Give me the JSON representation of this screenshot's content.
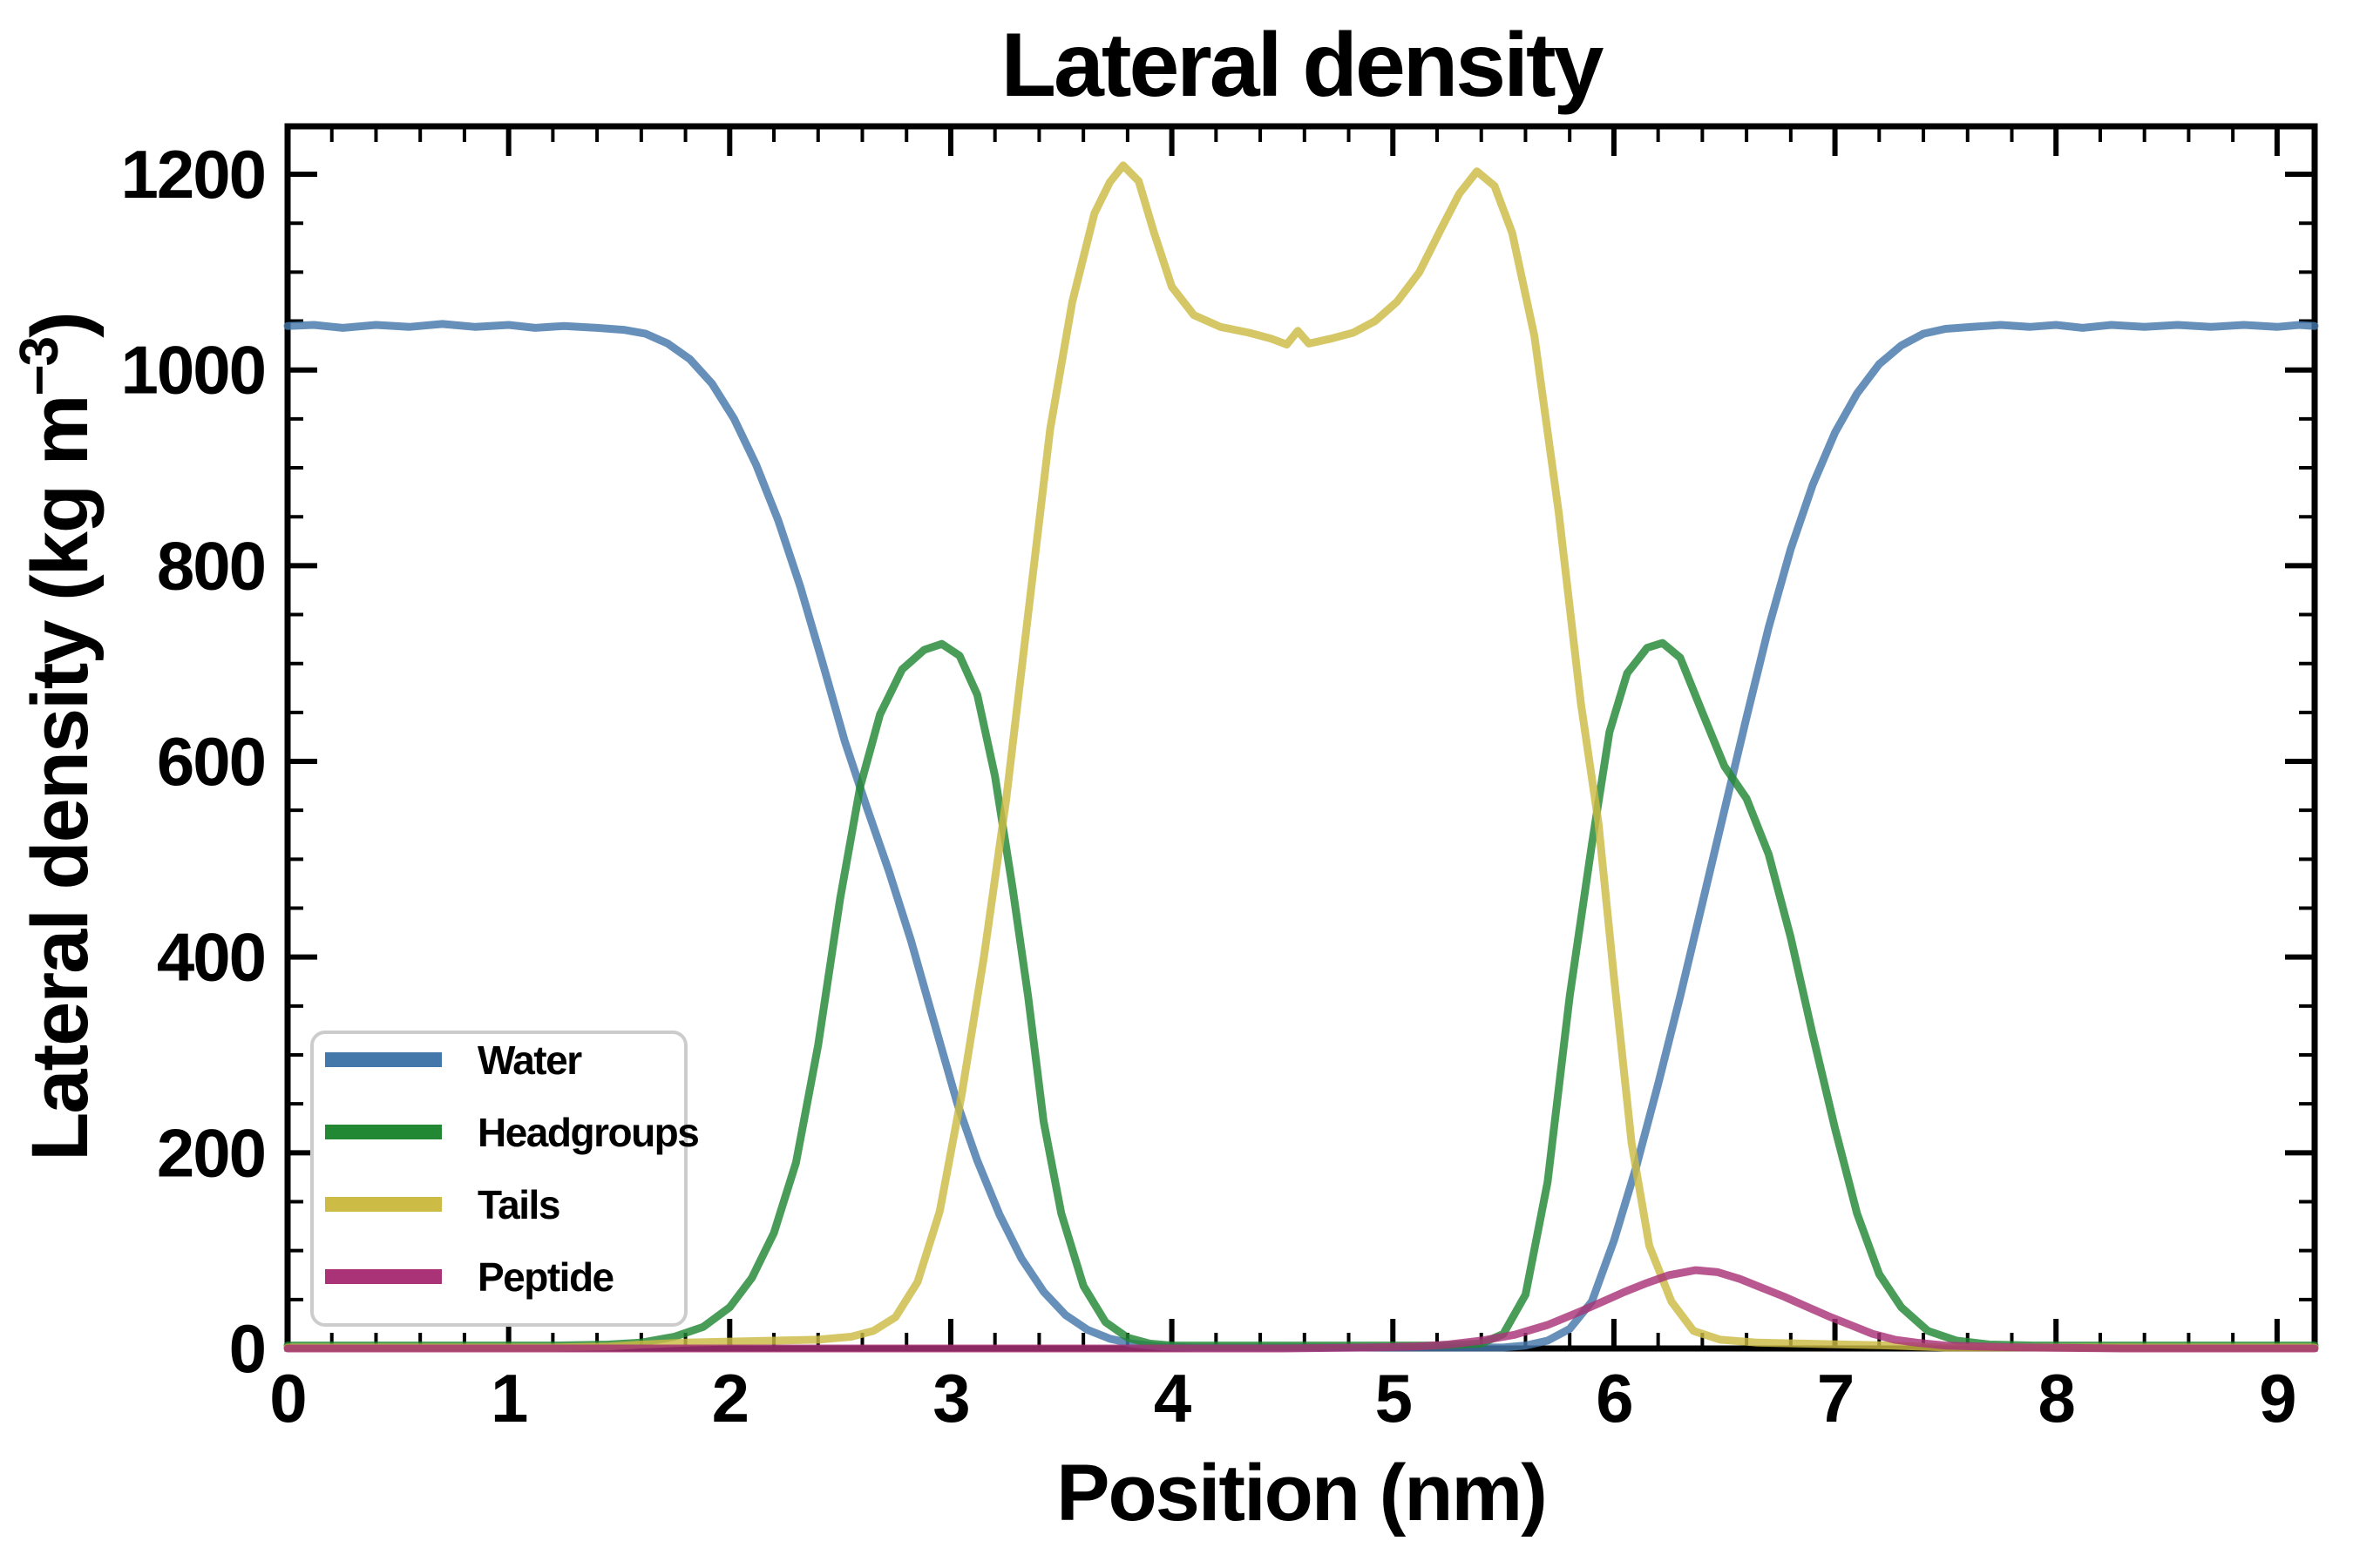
{
  "chart_data": {
    "type": "line",
    "title": "Lateral density",
    "xlabel": "Position (nm)",
    "ylabel": "Lateral density (kg m−3)",
    "ylabel_parts": {
      "main": "Lateral density (kg m",
      "sup": "−3",
      "end": ")"
    },
    "xlim": [
      0,
      9.17
    ],
    "ylim": [
      0,
      1249
    ],
    "x_major_ticks": [
      0,
      1,
      2,
      3,
      4,
      5,
      6,
      7,
      8,
      9
    ],
    "x_minor_step": 0.2,
    "y_major_ticks": [
      0,
      200,
      400,
      600,
      800,
      1000,
      1200
    ],
    "y_minor_step": 50,
    "grid": false,
    "legend_position": "lower-left",
    "line_width": 9,
    "line_opacity": 0.82,
    "series": [
      {
        "name": "Water",
        "color": "#4477AA",
        "points": [
          [
            0,
            1045
          ],
          [
            0.12,
            1046
          ],
          [
            0.25,
            1043
          ],
          [
            0.4,
            1046
          ],
          [
            0.55,
            1044
          ],
          [
            0.7,
            1047
          ],
          [
            0.85,
            1044
          ],
          [
            1.0,
            1046
          ],
          [
            1.12,
            1043
          ],
          [
            1.25,
            1045
          ],
          [
            1.4,
            1043
          ],
          [
            1.52,
            1041
          ],
          [
            1.62,
            1037
          ],
          [
            1.72,
            1027
          ],
          [
            1.82,
            1011
          ],
          [
            1.92,
            986
          ],
          [
            2.02,
            950
          ],
          [
            2.12,
            903
          ],
          [
            2.22,
            846
          ],
          [
            2.32,
            778
          ],
          [
            2.42,
            701
          ],
          [
            2.52,
            621
          ],
          [
            2.62,
            553
          ],
          [
            2.72,
            488
          ],
          [
            2.82,
            417
          ],
          [
            2.92,
            337
          ],
          [
            3.03,
            250
          ],
          [
            3.12,
            192
          ],
          [
            3.22,
            137
          ],
          [
            3.32,
            92
          ],
          [
            3.42,
            58
          ],
          [
            3.52,
            34
          ],
          [
            3.62,
            19
          ],
          [
            3.72,
            10
          ],
          [
            3.82,
            5
          ],
          [
            3.95,
            2
          ],
          [
            4.1,
            1
          ],
          [
            4.4,
            1
          ],
          [
            4.8,
            1
          ],
          [
            5.2,
            1
          ],
          [
            5.5,
            1
          ],
          [
            5.6,
            3
          ],
          [
            5.7,
            8
          ],
          [
            5.8,
            20
          ],
          [
            5.9,
            48
          ],
          [
            6.0,
            110
          ],
          [
            6.1,
            185
          ],
          [
            6.2,
            270
          ],
          [
            6.3,
            360
          ],
          [
            6.4,
            455
          ],
          [
            6.5,
            550
          ],
          [
            6.6,
            645
          ],
          [
            6.7,
            737
          ],
          [
            6.8,
            817
          ],
          [
            6.9,
            883
          ],
          [
            7.0,
            936
          ],
          [
            7.1,
            976
          ],
          [
            7.2,
            1006
          ],
          [
            7.3,
            1025
          ],
          [
            7.4,
            1037
          ],
          [
            7.5,
            1042
          ],
          [
            7.62,
            1044
          ],
          [
            7.75,
            1046
          ],
          [
            7.88,
            1044
          ],
          [
            8.0,
            1046
          ],
          [
            8.12,
            1043
          ],
          [
            8.25,
            1046
          ],
          [
            8.4,
            1044
          ],
          [
            8.55,
            1046
          ],
          [
            8.7,
            1044
          ],
          [
            8.85,
            1046
          ],
          [
            9.0,
            1044
          ],
          [
            9.1,
            1046
          ],
          [
            9.17,
            1045
          ]
        ]
      },
      {
        "name": "Headgroups",
        "color": "#228833",
        "points": [
          [
            0,
            3
          ],
          [
            0.3,
            3
          ],
          [
            0.6,
            3
          ],
          [
            0.9,
            3
          ],
          [
            1.2,
            3
          ],
          [
            1.45,
            4
          ],
          [
            1.6,
            6
          ],
          [
            1.75,
            12
          ],
          [
            1.88,
            22
          ],
          [
            2.0,
            42
          ],
          [
            2.1,
            72
          ],
          [
            2.2,
            118
          ],
          [
            2.3,
            190
          ],
          [
            2.4,
            310
          ],
          [
            2.5,
            460
          ],
          [
            2.59,
            574
          ],
          [
            2.68,
            648
          ],
          [
            2.78,
            694
          ],
          [
            2.88,
            714
          ],
          [
            2.96,
            720
          ],
          [
            3.04,
            708
          ],
          [
            3.12,
            668
          ],
          [
            3.2,
            585
          ],
          [
            3.28,
            470
          ],
          [
            3.35,
            360
          ],
          [
            3.42,
            232
          ],
          [
            3.5,
            138
          ],
          [
            3.6,
            64
          ],
          [
            3.7,
            27
          ],
          [
            3.8,
            11
          ],
          [
            3.9,
            5
          ],
          [
            4.0,
            3
          ],
          [
            4.4,
            3
          ],
          [
            4.8,
            3
          ],
          [
            5.2,
            3
          ],
          [
            5.4,
            5
          ],
          [
            5.5,
            15
          ],
          [
            5.6,
            55
          ],
          [
            5.7,
            170
          ],
          [
            5.8,
            360
          ],
          [
            5.9,
            515
          ],
          [
            5.98,
            630
          ],
          [
            6.06,
            690
          ],
          [
            6.15,
            716
          ],
          [
            6.22,
            721
          ],
          [
            6.3,
            706
          ],
          [
            6.4,
            650
          ],
          [
            6.5,
            595
          ],
          [
            6.6,
            562
          ],
          [
            6.7,
            505
          ],
          [
            6.8,
            420
          ],
          [
            6.9,
            320
          ],
          [
            7.0,
            225
          ],
          [
            7.1,
            138
          ],
          [
            7.2,
            76
          ],
          [
            7.3,
            42
          ],
          [
            7.42,
            18
          ],
          [
            7.55,
            8
          ],
          [
            7.7,
            4
          ],
          [
            7.9,
            3
          ],
          [
            8.3,
            3
          ],
          [
            8.7,
            3
          ],
          [
            9.17,
            3
          ]
        ]
      },
      {
        "name": "Tails",
        "color": "#CCBB44",
        "points": [
          [
            0,
            1
          ],
          [
            0.4,
            1
          ],
          [
            0.8,
            1
          ],
          [
            1.2,
            1
          ],
          [
            1.45,
            2
          ],
          [
            1.6,
            4
          ],
          [
            1.8,
            6
          ],
          [
            2.0,
            7
          ],
          [
            2.2,
            8
          ],
          [
            2.4,
            9
          ],
          [
            2.55,
            12
          ],
          [
            2.65,
            18
          ],
          [
            2.75,
            32
          ],
          [
            2.85,
            68
          ],
          [
            2.95,
            140
          ],
          [
            3.05,
            260
          ],
          [
            3.15,
            400
          ],
          [
            3.25,
            560
          ],
          [
            3.35,
            750
          ],
          [
            3.45,
            940
          ],
          [
            3.55,
            1070
          ],
          [
            3.65,
            1160
          ],
          [
            3.72,
            1192
          ],
          [
            3.78,
            1209
          ],
          [
            3.85,
            1193
          ],
          [
            3.92,
            1140
          ],
          [
            4.0,
            1085
          ],
          [
            4.1,
            1056
          ],
          [
            4.22,
            1044
          ],
          [
            4.35,
            1038
          ],
          [
            4.45,
            1032
          ],
          [
            4.52,
            1026
          ],
          [
            4.57,
            1040
          ],
          [
            4.62,
            1027
          ],
          [
            4.72,
            1032
          ],
          [
            4.82,
            1038
          ],
          [
            4.92,
            1050
          ],
          [
            5.02,
            1070
          ],
          [
            5.12,
            1100
          ],
          [
            5.22,
            1145
          ],
          [
            5.3,
            1180
          ],
          [
            5.38,
            1203
          ],
          [
            5.46,
            1188
          ],
          [
            5.54,
            1140
          ],
          [
            5.64,
            1035
          ],
          [
            5.75,
            855
          ],
          [
            5.85,
            660
          ],
          [
            5.93,
            537
          ],
          [
            6.0,
            380
          ],
          [
            6.08,
            210
          ],
          [
            6.16,
            105
          ],
          [
            6.26,
            48
          ],
          [
            6.36,
            18
          ],
          [
            6.48,
            9
          ],
          [
            6.65,
            6
          ],
          [
            6.85,
            5
          ],
          [
            7.05,
            4
          ],
          [
            7.25,
            3
          ],
          [
            7.5,
            1
          ],
          [
            7.9,
            1
          ],
          [
            8.4,
            1
          ],
          [
            9.17,
            1
          ]
        ]
      },
      {
        "name": "Peptide",
        "color": "#AA3377",
        "points": [
          [
            0,
            0
          ],
          [
            0.5,
            0
          ],
          [
            1.0,
            0
          ],
          [
            1.5,
            0
          ],
          [
            2.0,
            0
          ],
          [
            2.5,
            0
          ],
          [
            3.0,
            0
          ],
          [
            3.5,
            0
          ],
          [
            4.0,
            0
          ],
          [
            4.5,
            0
          ],
          [
            4.9,
            1
          ],
          [
            5.1,
            2
          ],
          [
            5.25,
            4
          ],
          [
            5.4,
            8
          ],
          [
            5.55,
            14
          ],
          [
            5.7,
            24
          ],
          [
            5.85,
            38
          ],
          [
            5.95,
            48
          ],
          [
            6.05,
            58
          ],
          [
            6.15,
            67
          ],
          [
            6.25,
            75
          ],
          [
            6.37,
            80
          ],
          [
            6.47,
            78
          ],
          [
            6.57,
            71
          ],
          [
            6.67,
            62
          ],
          [
            6.77,
            53
          ],
          [
            6.87,
            43
          ],
          [
            6.97,
            33
          ],
          [
            7.07,
            24
          ],
          [
            7.17,
            15
          ],
          [
            7.27,
            9
          ],
          [
            7.37,
            6
          ],
          [
            7.5,
            3
          ],
          [
            7.65,
            2
          ],
          [
            7.85,
            1
          ],
          [
            8.3,
            0
          ],
          [
            8.8,
            0
          ],
          [
            9.17,
            0
          ]
        ]
      }
    ]
  }
}
